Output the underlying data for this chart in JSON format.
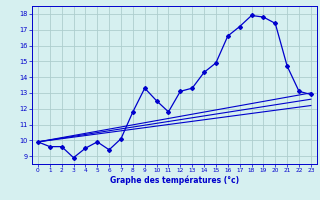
{
  "xlabel": "Graphe des températures (°c)",
  "background_color": "#d6f0f0",
  "grid_color": "#aecece",
  "line_color": "#0000cc",
  "ylim": [
    8.5,
    18.5
  ],
  "xlim": [
    -0.5,
    23.5
  ],
  "yticks": [
    9,
    10,
    11,
    12,
    13,
    14,
    15,
    16,
    17,
    18
  ],
  "xticks": [
    0,
    1,
    2,
    3,
    4,
    5,
    6,
    7,
    8,
    9,
    10,
    11,
    12,
    13,
    14,
    15,
    16,
    17,
    18,
    19,
    20,
    21,
    22,
    23
  ],
  "curve1_x": [
    0,
    1,
    2,
    3,
    4,
    5,
    6,
    7,
    8,
    9,
    10,
    11,
    12,
    13,
    14,
    15,
    16,
    17,
    18,
    19,
    20,
    21,
    22,
    23
  ],
  "curve1_y": [
    9.9,
    9.6,
    9.6,
    8.9,
    9.5,
    9.9,
    9.4,
    10.1,
    11.8,
    13.3,
    12.5,
    11.8,
    13.1,
    13.3,
    14.3,
    14.9,
    16.6,
    17.2,
    17.9,
    17.8,
    17.4,
    14.7,
    13.1,
    12.9
  ],
  "line2_x": [
    0,
    23
  ],
  "line2_y": [
    9.9,
    13.0
  ],
  "line3_x": [
    0,
    23
  ],
  "line3_y": [
    9.9,
    12.6
  ],
  "line4_x": [
    0,
    23
  ],
  "line4_y": [
    9.9,
    12.2
  ]
}
